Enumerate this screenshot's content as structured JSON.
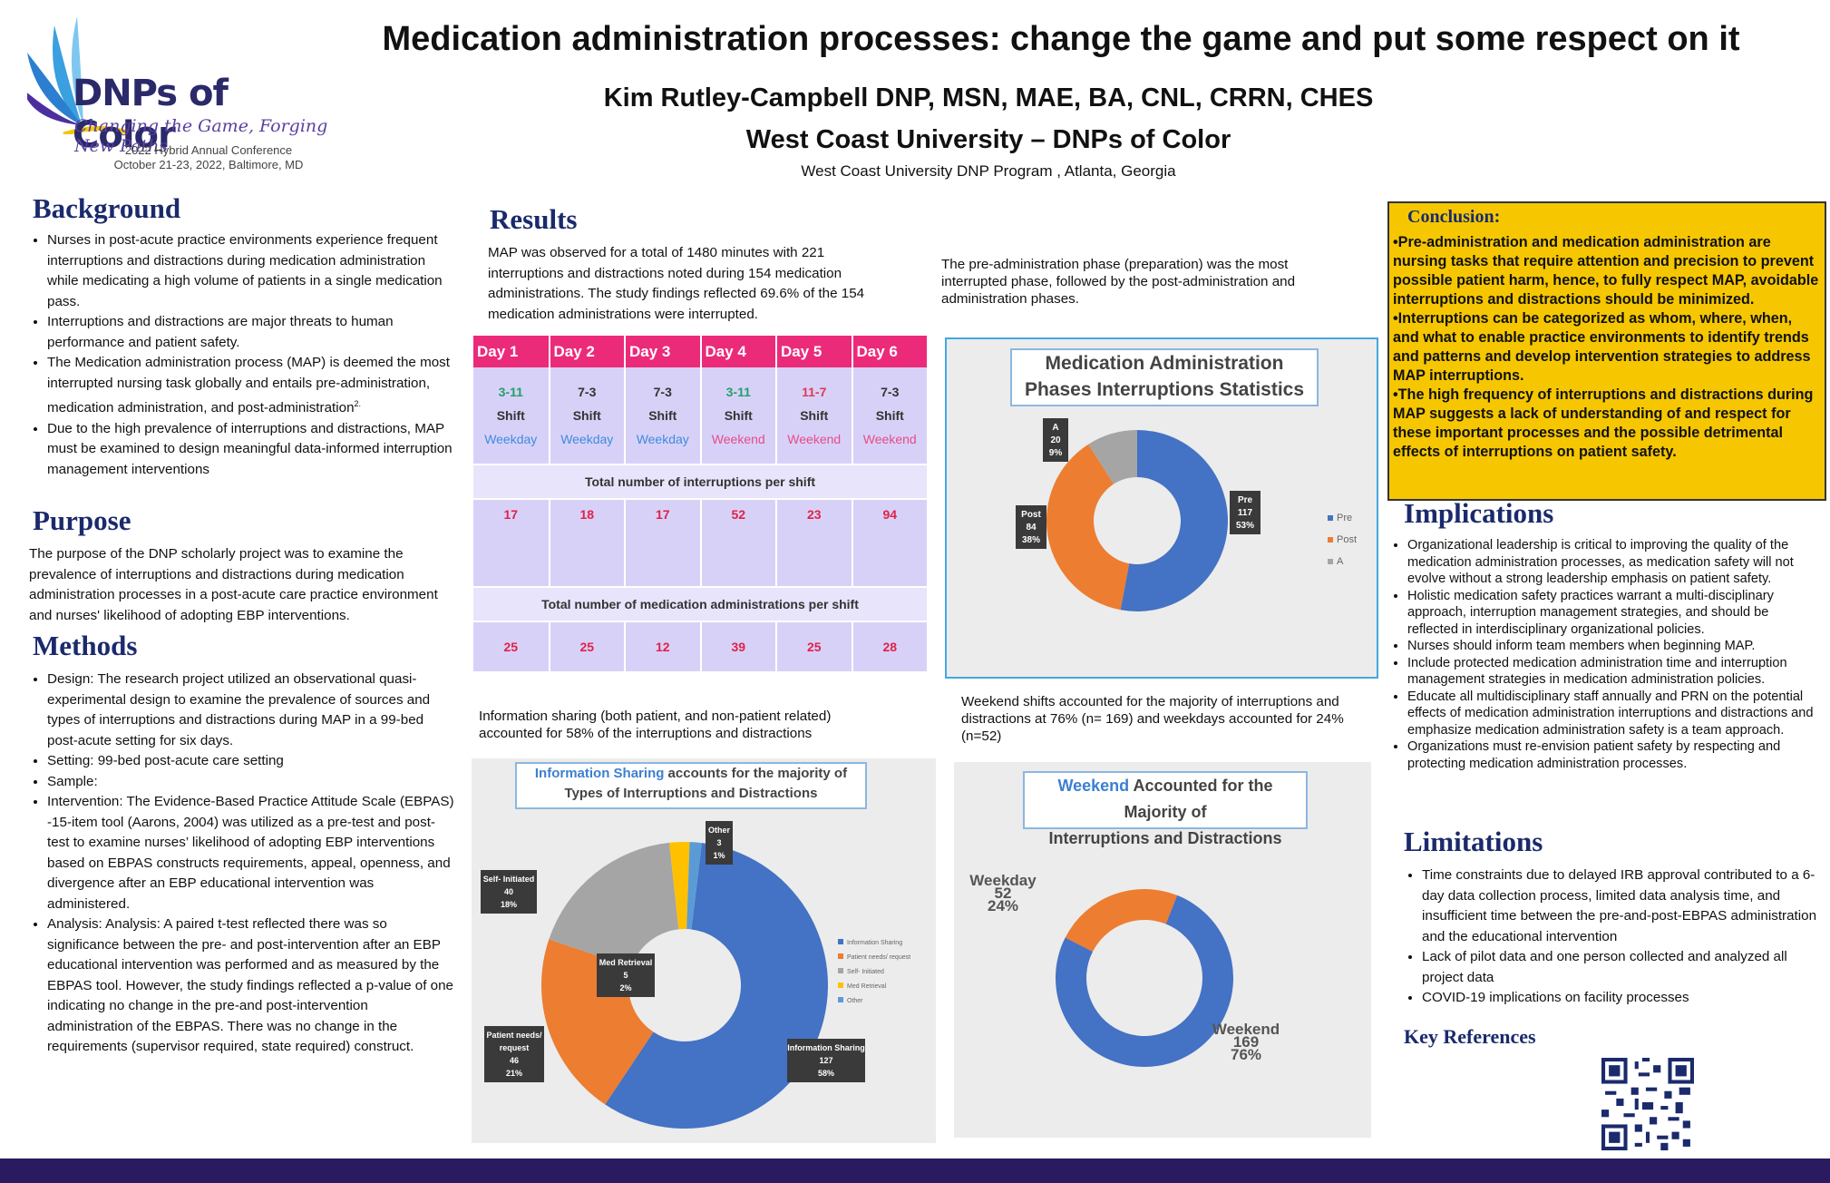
{
  "logo": {
    "name": "DNPs of Color",
    "tagline": "Changing the Game, Forging New Paths",
    "conference": "2022 Hybrid Annual Conference",
    "dates": "October 21-23, 2022, Baltimore, MD"
  },
  "header": {
    "title": "Medication administration processes: change the game and put some respect on it",
    "author": "Kim Rutley-Campbell DNP, MSN, MAE, BA, CNL, CRRN, CHES",
    "institution": "West Coast University – DNPs of Color",
    "program": "West Coast University DNP Program , Atlanta, Georgia"
  },
  "background": {
    "heading": "Background",
    "items": [
      "Nurses in post-acute practice environments experience frequent interruptions and distractions during medication administration while medicating a high volume of patients in a single medication pass.",
      "Interruptions and distractions are major threats to human performance and patient safety.",
      "The Medication administration process (MAP) is deemed the most interrupted nursing task globally and entails pre-administration, medication administration, and post-administration",
      "Due to the high prevalence of interruptions and distractions, MAP must be examined to design meaningful data-informed interruption management interventions"
    ],
    "superscript": "2."
  },
  "purpose": {
    "heading": "Purpose",
    "text": "The purpose of the DNP scholarly project was to examine the prevalence of interruptions and distractions during medication administration processes in a post-acute care practice environment and nurses' likelihood of adopting EBP interventions."
  },
  "methods": {
    "heading": "Methods",
    "items": [
      "Design: The research project utilized an observational quasi-experimental design to examine the prevalence of sources and types of interruptions and distractions during MAP in a 99-bed post-acute setting for six days.",
      "Setting: 99-bed post-acute care setting",
      "Sample:",
      "Intervention: The Evidence-Based Practice Attitude Scale (EBPAS) -15-item tool (Aarons, 2004) was utilized as a pre-test and post-test to examine nurses’ likelihood of adopting EBP interventions based on EBPAS constructs requirements, appeal, openness, and divergence after an EBP educational intervention was administered.",
      "Analysis: Analysis: A paired t-test reflected there was so significance between the pre- and post-intervention after an EBP educational intervention was performed and as measured by the EBPAS tool. However, the study findings reflected a p-value of one indicating no change in the pre-and post-intervention administration of the EBPAS. There was no change in the requirements (supervisor required, state required) construct."
    ]
  },
  "results": {
    "heading": "Results",
    "intro": "MAP was observed for a total of 1480 minutes with 221 interruptions and distractions noted during 154 medication administrations. The study findings reflected 69.6% of the 154 medication administrations were interrupted.",
    "table": {
      "days": [
        "Day 1",
        "Day 2",
        "Day 3",
        "Day 4",
        "Day 5",
        "Day 6"
      ],
      "shifts": [
        "3-11",
        "7-3",
        "7-3",
        "3-11",
        "11-7",
        "7-3"
      ],
      "shift_word": "Shift",
      "day_types": [
        "Weekday",
        "Weekday",
        "Weekday",
        "Weekend",
        "Weekend",
        "Weekend"
      ],
      "interruptions_label": "Total number of interruptions per shift",
      "interruptions": [
        "17",
        "18",
        "17",
        "52",
        "23",
        "94"
      ],
      "administrations_label": "Total number of medication administrations per shift",
      "administrations": [
        "25",
        "25",
        "12",
        "39",
        "25",
        "28"
      ]
    },
    "phase_text": "The pre-administration phase (preparation) was the most interrupted phase, followed by the post-administration and administration phases.",
    "info_text": "Information sharing (both patient, and non-patient related) accounted for 58% of the interruptions and distractions",
    "weekend_text": "Weekend shifts accounted for the majority of interruptions and distractions at 76% (n= 169) and weekdays accounted for 24% (n=52)"
  },
  "chart_data": [
    {
      "type": "pie",
      "title": "Medication Administration Phases Interruptions Statistics",
      "categories": [
        "Pre",
        "Post",
        "A"
      ],
      "values": [
        117,
        84,
        20
      ],
      "percents": [
        "53%",
        "38%",
        "9%"
      ],
      "colors": [
        "#4472c4",
        "#ed7d31",
        "#a5a5a5"
      ],
      "legend": "right"
    },
    {
      "type": "pie",
      "title_highlight": "Information Sharing",
      "title_rest": " accounts for the majority of",
      "title_line2": "Types of Interruptions and Distractions",
      "categories": [
        "Information Sharing",
        "Patient needs/ request",
        "Self- Initiated",
        "Med Retrieval",
        "Other"
      ],
      "legend_labels": [
        "Information Sharing",
        "Patient needs/ request",
        "Self- Initiated",
        "Med Retrieval",
        "Other"
      ],
      "values": [
        127,
        46,
        40,
        5,
        3
      ],
      "percents": [
        "58%",
        "21%",
        "18%",
        "2%",
        "1%"
      ],
      "colors": [
        "#4472c4",
        "#ed7d31",
        "#a5a5a5",
        "#ffc000",
        "#5b9bd5"
      ],
      "legend": "right"
    },
    {
      "type": "pie",
      "title_highlight": "Weekend",
      "title_rest": " Accounted for the Majority of",
      "title_line2": "Interruptions and Distractions",
      "categories": [
        "Weekday",
        "Weekend"
      ],
      "values": [
        52,
        169
      ],
      "percents": [
        "24%",
        "76%"
      ],
      "colors": [
        "#ed7d31",
        "#4472c4"
      ]
    }
  ],
  "conclusion": {
    "heading": "Conclusion:",
    "items": [
      "•Pre-administration and medication administration are nursing tasks that require attention and precision to prevent possible patient harm, hence, to fully respect MAP, avoidable interruptions and distractions should be minimized.",
      "•Interruptions can be categorized as whom, where, when, and what to enable practice environments to identify trends and patterns and develop intervention strategies to address MAP interruptions.",
      "•The high frequency of interruptions and distractions during MAP suggests a lack of understanding of and respect for these important processes and the possible detrimental effects of interruptions on patient safety."
    ]
  },
  "implications": {
    "heading": "Implications",
    "items": [
      "Organizational leadership is critical to improving the quality of the medication administration processes, as medication safety will not evolve without a strong leadership emphasis on patient safety.",
      "Holistic medication safety practices warrant a multi-disciplinary approach, interruption management strategies, and should be reflected in interdisciplinary organizational policies.",
      "Nurses should inform team members when beginning MAP.",
      "Include protected medication administration time and interruption management strategies in medication administration policies.",
      "Educate all multidisciplinary staff annually and PRN on the potential effects of medication administration interruptions and distractions and emphasize medication administration safety is a team approach.",
      "Organizations must re-envision patient safety by respecting and protecting medication administration processes."
    ]
  },
  "limitations": {
    "heading": "Limitations",
    "items": [
      "Time constraints due to delayed IRB approval contributed to a 6-day data collection process,  limited data analysis time, and insufficient time between the pre-and-post-EBPAS administration and the educational intervention",
      "Lack of pilot data and one person collected and analyzed all project data",
      "COVID-19 implications on facility processes"
    ]
  },
  "references": {
    "heading": "Key References"
  },
  "colors": {
    "heading_navy": "#1a2a6c",
    "table_header": "#ec2a7a",
    "table_body": "#d8d1f7",
    "conclusion_bg": "#f6c700",
    "bottom_bar": "#2a1a60"
  },
  "icons": [
    "logo-wing-icon",
    "qr-code-icon"
  ]
}
